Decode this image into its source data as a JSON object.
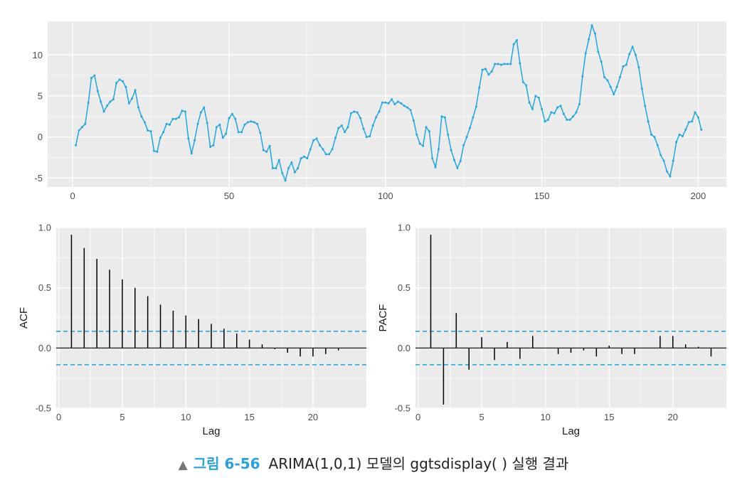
{
  "caption": {
    "marker": "▲",
    "label": "그림 6-56",
    "text": "ARIMA(1,0,1) 모델의 ggtsdisplay( ) 실행 결과"
  },
  "colors": {
    "series": "#1ea7e1",
    "panel": "#ebebeb",
    "grid": "#ffffff",
    "bar": "#000000",
    "ci": "#1ea7e1"
  },
  "chart_data": [
    {
      "type": "line",
      "id": "series",
      "title": "",
      "xlabel": "",
      "ylabel": "",
      "xlim": [
        -8,
        209
      ],
      "ylim": [
        -6.1,
        14.1
      ],
      "xticks": [
        0,
        50,
        100,
        150,
        200
      ],
      "yticks": [
        -5,
        0,
        5,
        10
      ],
      "grid": true,
      "markers": true,
      "x_start": 1,
      "values": [
        -1.0,
        0.8,
        1.2,
        1.6,
        4.2,
        7.2,
        7.5,
        5.6,
        4.3,
        3.1,
        3.8,
        4.3,
        4.6,
        6.6,
        7.0,
        6.8,
        6.1,
        4.1,
        4.7,
        5.7,
        3.6,
        2.5,
        1.8,
        0.8,
        0.7,
        -1.7,
        -1.8,
        -0.1,
        0.6,
        1.6,
        1.5,
        2.2,
        2.2,
        2.4,
        3.2,
        3.1,
        -0.2,
        -2.0,
        -0.4,
        1.6,
        3.0,
        3.6,
        1.7,
        -1.2,
        -1.0,
        1.2,
        1.5,
        -0.1,
        0.4,
        2.3,
        2.8,
        2.2,
        0.6,
        0.6,
        1.5,
        1.8,
        1.9,
        1.8,
        1.6,
        0.5,
        -1.6,
        -1.8,
        -1.1,
        -3.8,
        -3.8,
        -2.8,
        -4.4,
        -5.3,
        -3.8,
        -3.1,
        -4.3,
        -3.8,
        -2.6,
        -2.4,
        -2.6,
        -1.5,
        -0.4,
        -0.2,
        -1.0,
        -1.5,
        -2.1,
        -2.1,
        -1.5,
        -0.1,
        1.1,
        1.4,
        0.6,
        1.2,
        2.9,
        3.1,
        3.0,
        2.3,
        1.0,
        0.0,
        0.1,
        1.4,
        2.4,
        3.1,
        4.2,
        4.2,
        4.1,
        4.6,
        4.0,
        4.3,
        4.1,
        3.8,
        3.6,
        3.3,
        2.0,
        0.3,
        -0.8,
        -1.1,
        1.2,
        0.7,
        -2.6,
        -3.7,
        -1.5,
        2.5,
        2.4,
        0.3,
        -1.6,
        -2.8,
        -3.8,
        -2.9,
        -1.0,
        0.0,
        1.1,
        2.4,
        3.7,
        6.0,
        8.2,
        8.3,
        7.6,
        8.0,
        8.9,
        8.9,
        8.8,
        8.9,
        8.9,
        8.9,
        11.3,
        11.8,
        9.0,
        6.7,
        6.3,
        4.2,
        3.4,
        5.0,
        4.8,
        3.4,
        1.9,
        2.1,
        3.0,
        2.9,
        3.6,
        3.8,
        2.8,
        2.1,
        2.1,
        2.5,
        3.0,
        4.0,
        7.4,
        10.2,
        11.9,
        13.6,
        12.6,
        10.4,
        9.2,
        7.3,
        6.9,
        6.1,
        5.2,
        6.1,
        7.3,
        8.6,
        8.8,
        10.1,
        11.0,
        10.0,
        8.5,
        5.9,
        3.8,
        1.9,
        0.3,
        0.0,
        -1.0,
        -2.2,
        -2.9,
        -4.2,
        -4.8,
        -2.9,
        -0.6,
        0.3,
        0.1,
        0.9,
        1.8,
        1.9,
        3.0,
        2.4,
        0.9
      ]
    },
    {
      "type": "bar",
      "id": "acf",
      "title": "",
      "xlabel": "Lag",
      "ylabel": "ACF",
      "xlim": [
        -0.2,
        24.2
      ],
      "ylim": [
        -0.5,
        1.0
      ],
      "xticks": [
        0,
        5,
        10,
        15,
        20
      ],
      "yticks": [
        -0.5,
        0.0,
        0.5,
        1.0
      ],
      "ytick_labels": [
        "-0.5",
        "0.0",
        "0.5",
        "1.0"
      ],
      "grid": true,
      "lags": [
        1,
        2,
        3,
        4,
        5,
        6,
        7,
        8,
        9,
        10,
        11,
        12,
        13,
        14,
        15,
        16,
        17,
        18,
        19,
        20,
        21,
        22
      ],
      "values": [
        0.94,
        0.83,
        0.74,
        0.65,
        0.57,
        0.5,
        0.43,
        0.36,
        0.31,
        0.27,
        0.24,
        0.2,
        0.16,
        0.12,
        0.07,
        0.03,
        -0.01,
        -0.04,
        -0.07,
        -0.07,
        -0.05,
        -0.02
      ],
      "ci": [
        0.139,
        -0.139
      ]
    },
    {
      "type": "bar",
      "id": "pacf",
      "title": "",
      "xlabel": "Lag",
      "ylabel": "PACF",
      "xlim": [
        -0.2,
        24.2
      ],
      "ylim": [
        -0.5,
        1.0
      ],
      "xticks": [
        0,
        5,
        10,
        15,
        20
      ],
      "yticks": [
        -0.5,
        0.0,
        0.5,
        1.0
      ],
      "ytick_labels": [
        "-0.5",
        "0.0",
        "0.5",
        "1.0"
      ],
      "grid": true,
      "lags": [
        1,
        2,
        3,
        4,
        5,
        6,
        7,
        8,
        9,
        10,
        11,
        12,
        13,
        14,
        15,
        16,
        17,
        18,
        19,
        20,
        21,
        22,
        23
      ],
      "values": [
        0.94,
        -0.47,
        0.29,
        -0.18,
        0.09,
        -0.1,
        0.05,
        -0.09,
        0.1,
        0.0,
        -0.05,
        -0.04,
        -0.02,
        -0.07,
        0.02,
        -0.05,
        -0.05,
        0.0,
        0.1,
        0.1,
        0.03,
        0.01,
        -0.07
      ],
      "ci": [
        0.139,
        -0.139
      ]
    }
  ]
}
